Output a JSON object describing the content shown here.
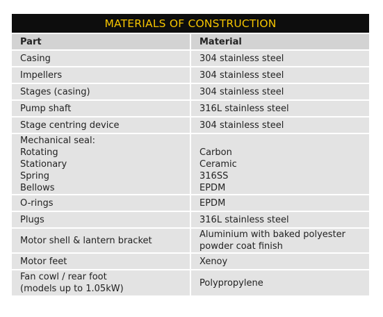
{
  "title": "MATERIALS OF CONSTRUCTION",
  "headers": {
    "part": "Part",
    "material": "Material"
  },
  "rows": [
    {
      "part": "Casing",
      "material": "304 stainless steel"
    },
    {
      "part": "Impellers",
      "material": "304 stainless steel"
    },
    {
      "part": "Stages (casing)",
      "material": "304 stainless steel"
    },
    {
      "part": "Pump shaft",
      "material": "316L stainless steel"
    },
    {
      "part": "Stage centring device",
      "material": "304 stainless steel"
    },
    {
      "part_lines": [
        "Mechanical seal:",
        "Rotating",
        "Stationary",
        "Spring",
        "Bellows"
      ],
      "material_lines": [
        "Carbon",
        "Ceramic",
        "316SS",
        "EPDM"
      ]
    },
    {
      "part": "O-rings",
      "material": "EPDM"
    },
    {
      "part": "Plugs",
      "material": "316L stainless steel"
    },
    {
      "part": "Motor shell & lantern bracket",
      "material_lines": [
        "Aluminium with baked polyester",
        "powder coat finish"
      ]
    },
    {
      "part": "Motor feet",
      "material": "Xenoy"
    },
    {
      "part_lines": [
        "Fan cowl / rear foot",
        "(models up to 1.05kW)"
      ],
      "material": "Polypropylene"
    }
  ]
}
